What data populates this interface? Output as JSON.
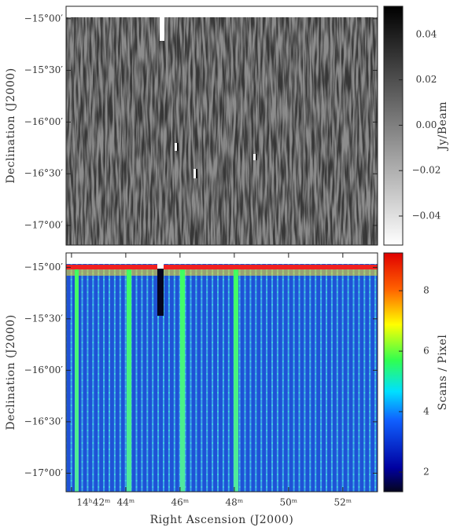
{
  "chart_data": [
    {
      "type": "image",
      "ylabel": "Declination (J2000)",
      "colormap": "gray",
      "ylim": [
        -17.19,
        -14.88
      ],
      "yticks": [
        {
          "value": -15,
          "label": "−15°00′"
        },
        {
          "value": -15.5,
          "label": "−15°30′"
        },
        {
          "value": -16,
          "label": "−16°00′"
        },
        {
          "value": -16.5,
          "label": "−16°30′"
        },
        {
          "value": -17,
          "label": "−17°00′"
        }
      ],
      "colorbar_label": "Jy/Beam",
      "clim": [
        -0.0528,
        0.0524
      ],
      "cticks": [
        0.04,
        0.02,
        {
          "value": 0,
          "label": "0.00"
        },
        {
          "value": -0.02,
          "label": "−0.02"
        },
        {
          "value": -0.04,
          "label": "−0.04"
        }
      ]
    },
    {
      "type": "image",
      "ylabel": "Declination (J2000)",
      "xlabel": "Right Ascension (J2000)",
      "colormap": "jet",
      "ylim": [
        -17.18,
        -14.86
      ],
      "yticks": [
        {
          "value": -15,
          "label": "−15°00′"
        },
        {
          "value": -15.5,
          "label": "−15°30′"
        },
        {
          "value": -16,
          "label": "−16°00′"
        },
        {
          "value": -16.5,
          "label": "−16°30′"
        },
        {
          "value": -17,
          "label": "−17°00′"
        }
      ],
      "xlim": [
        41.8,
        53.28
      ],
      "xticks": [
        {
          "value": 42,
          "label": "14ʰ42ᵐ"
        },
        {
          "value": 44,
          "label": "44ᵐ"
        },
        {
          "value": 46,
          "label": "46ᵐ"
        },
        {
          "value": 48,
          "label": "48ᵐ"
        },
        {
          "value": 50,
          "label": "50ᵐ"
        },
        {
          "value": 52,
          "label": "52ᵐ"
        }
      ],
      "colorbar_label": "Scans / Pixel",
      "clim": [
        1.35,
        9.25
      ],
      "cticks": [
        8,
        6,
        4,
        2
      ]
    }
  ]
}
